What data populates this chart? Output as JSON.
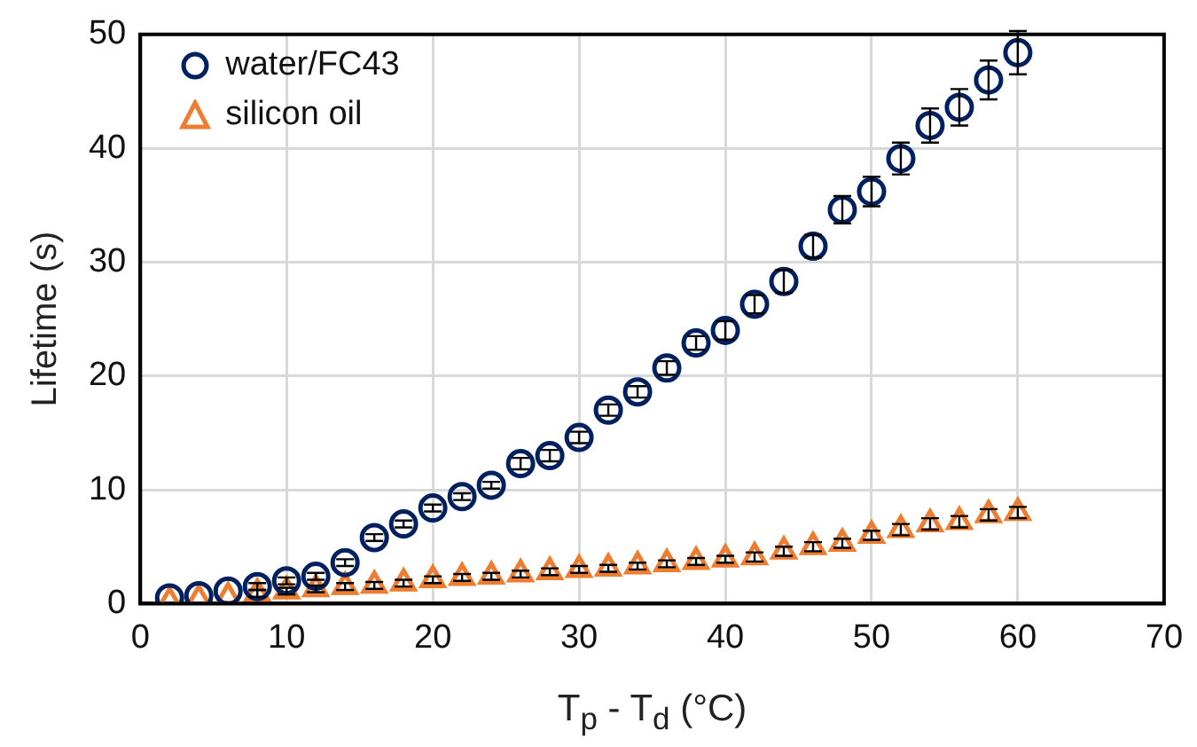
{
  "chart_data": {
    "type": "scatter",
    "xlabel": "T$_{p}$ - T$_{d}$ (°C)",
    "ylabel": "Lifetime (s)",
    "x": [
      2,
      4,
      6,
      8,
      10,
      12,
      14,
      16,
      18,
      20,
      22,
      24,
      26,
      28,
      30,
      32,
      34,
      36,
      38,
      40,
      42,
      44,
      46,
      48,
      50,
      52,
      54,
      56,
      58,
      60
    ],
    "series": [
      {
        "name": "water/FC43",
        "color": "#002060",
        "marker": "circle",
        "values": [
          0.5,
          0.7,
          1.1,
          1.5,
          2.0,
          2.4,
          3.6,
          5.8,
          7.0,
          8.4,
          9.4,
          10.4,
          12.3,
          13.0,
          14.6,
          17.0,
          18.6,
          20.7,
          22.9,
          24.0,
          26.3,
          28.3,
          31.4,
          34.6,
          36.2,
          39.1,
          42.0,
          43.6,
          46.0,
          48.4
        ],
        "errors": [
          null,
          null,
          null,
          0.3,
          0.3,
          0.3,
          0.3,
          0.3,
          0.3,
          0.3,
          0.3,
          0.3,
          0.5,
          0.5,
          0.5,
          0.5,
          0.5,
          0.6,
          0.6,
          0.8,
          0.8,
          1.0,
          1.0,
          1.2,
          1.3,
          1.4,
          1.5,
          1.6,
          1.7,
          1.9
        ]
      },
      {
        "name": "silicon oil",
        "color": "#ed7d31",
        "marker": "triangle",
        "values": [
          0.2,
          0.4,
          0.6,
          0.9,
          1.1,
          1.3,
          1.5,
          1.6,
          1.8,
          2.1,
          2.3,
          2.4,
          2.6,
          2.8,
          3.0,
          3.1,
          3.3,
          3.5,
          3.7,
          3.9,
          4.1,
          4.6,
          5.0,
          5.3,
          6.0,
          6.5,
          7.0,
          7.2,
          7.8,
          8.0
        ],
        "errors": [
          null,
          null,
          null,
          0.3,
          0.3,
          0.3,
          0.3,
          0.3,
          0.3,
          0.3,
          0.3,
          0.3,
          0.3,
          0.3,
          0.3,
          0.3,
          0.3,
          0.3,
          0.3,
          0.3,
          0.4,
          0.4,
          0.4,
          0.4,
          0.4,
          0.5,
          0.5,
          0.5,
          0.5,
          0.5
        ]
      }
    ],
    "xlim": [
      0,
      70
    ],
    "xticks": [
      0,
      10,
      20,
      30,
      40,
      50,
      60,
      70
    ],
    "ylim": [
      0,
      50
    ],
    "yticks": [
      0,
      10,
      20,
      30,
      40,
      50
    ],
    "grid": true,
    "legend": "top left"
  }
}
